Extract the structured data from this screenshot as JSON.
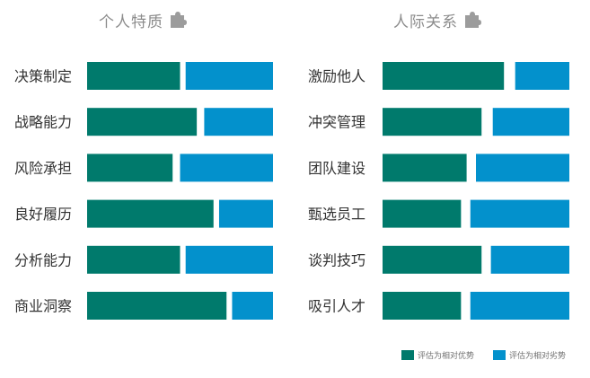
{
  "colors": {
    "strength": "#007a6c",
    "weakness": "#0391cc",
    "label": "#333333",
    "title": "#8c8c8c",
    "icon": "#9c9c9c"
  },
  "icons": {
    "panel_title_icon": "puzzle-piece-icon"
  },
  "legend": {
    "strength_label": "评估为相对优势",
    "weakness_label": "评估为相对劣势"
  },
  "chart_data": [
    {
      "type": "bar",
      "stacked": true,
      "orientation": "horizontal",
      "title": "个人特质",
      "categories": [
        "决策制定",
        "战略能力",
        "风险承担",
        "良好履历",
        "分析能力",
        "商业洞察"
      ],
      "series": [
        {
          "name": "评估为相对优势",
          "values": [
            50,
            59,
            46,
            68,
            50,
            75
          ]
        },
        {
          "name": "评估为相对劣势",
          "values": [
            47,
            37,
            50,
            29,
            47,
            22
          ]
        }
      ]
    },
    {
      "type": "bar",
      "stacked": true,
      "orientation": "horizontal",
      "title": "人际关系",
      "categories": [
        "激励他人",
        "冲突管理",
        "团队建设",
        "甄选员工",
        "谈判技巧",
        "吸引人才"
      ],
      "series": [
        {
          "name": "评估为相对优势",
          "values": [
            65,
            53,
            45,
            42,
            53,
            42
          ]
        },
        {
          "name": "评估为相对劣势",
          "values": [
            29,
            41,
            50,
            53,
            42,
            53
          ]
        }
      ]
    }
  ]
}
